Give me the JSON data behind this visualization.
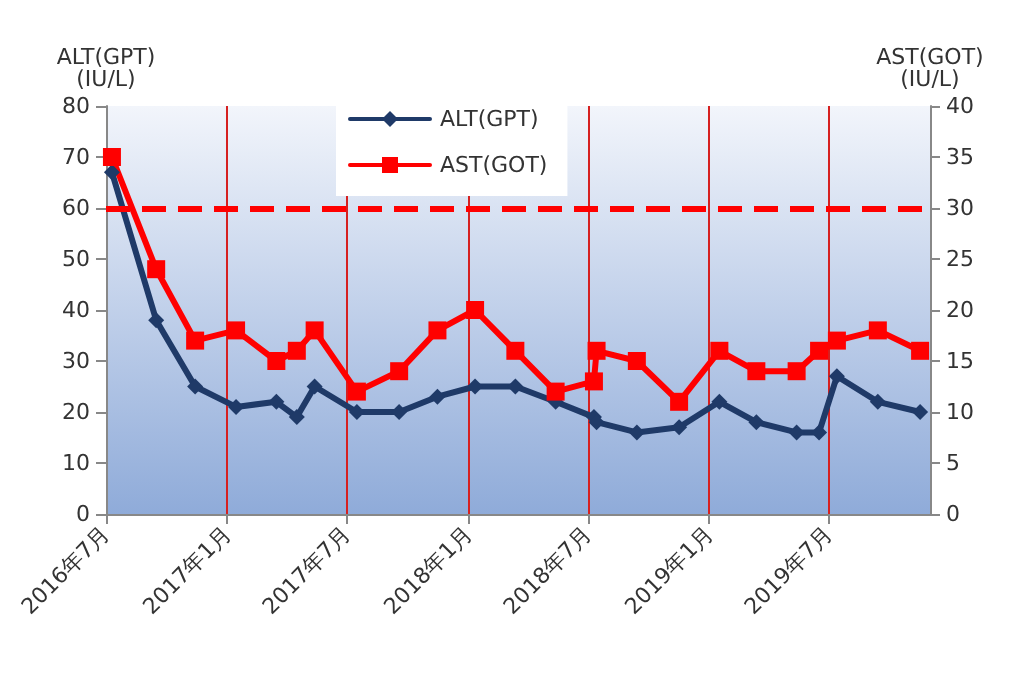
{
  "chart_data": {
    "type": "line",
    "x": [
      "2016-07-10",
      "2016-09-15",
      "2016-11-13",
      "2017-01-14",
      "2017-03-16",
      "2017-04-16",
      "2017-05-13",
      "2017-07-16",
      "2017-09-18",
      "2017-11-15",
      "2018-01-11",
      "2018-03-13",
      "2018-05-13",
      "2018-07-10",
      "2018-07-14",
      "2018-09-13",
      "2018-11-16",
      "2019-01-16",
      "2019-03-13",
      "2019-05-13",
      "2019-06-16",
      "2019-07-13",
      "2019-09-13",
      "2019-11-16"
    ],
    "series": [
      {
        "name": "ALT(GPT)",
        "color": "#1f3a68",
        "marker": "diamond",
        "values": [
          67,
          38,
          25,
          21,
          22,
          19,
          25,
          20,
          20,
          23,
          25,
          25,
          22,
          19,
          18,
          16,
          17,
          22,
          18,
          16,
          16,
          27,
          22,
          20
        ]
      },
      {
        "name": "AST(GOT)",
        "color": "#ff0000",
        "marker": "square",
        "axis": "y2",
        "values": [
          35,
          24,
          17,
          18,
          15,
          16,
          18,
          12,
          14,
          18,
          20,
          16,
          12,
          13,
          16,
          15,
          11,
          16,
          14,
          14,
          16,
          17,
          18,
          16
        ]
      }
    ],
    "ylabel": "ALT(GPT)\n(IU/L)",
    "y2label": "AST(GOT)\n(IU/L)",
    "xlim": [
      "2016-07-01",
      "2019-12-01"
    ],
    "xticks": [
      {
        "value": "2016-07",
        "label": "2016年7月"
      },
      {
        "value": "2017-01",
        "label": "2017年1月"
      },
      {
        "value": "2017-07",
        "label": "2017年7月"
      },
      {
        "value": "2018-01",
        "label": "2018年1月"
      },
      {
        "value": "2018-07",
        "label": "2018年7月"
      },
      {
        "value": "2019-01",
        "label": "2019年1月"
      },
      {
        "value": "2019-07",
        "label": "2019年7月"
      }
    ],
    "ylim": [
      0,
      80
    ],
    "yticks": [
      0,
      10,
      20,
      30,
      40,
      50,
      60,
      70,
      80
    ],
    "y2lim": [
      0,
      40
    ],
    "y2ticks": [
      0,
      5,
      10,
      15,
      20,
      25,
      30,
      35,
      40
    ],
    "ref_lines": [
      {
        "axis": "y2",
        "value": 30,
        "color": "#ff0000",
        "line_style": "dashed"
      }
    ],
    "grid": "x",
    "legend": "top",
    "line_style": "solid"
  }
}
